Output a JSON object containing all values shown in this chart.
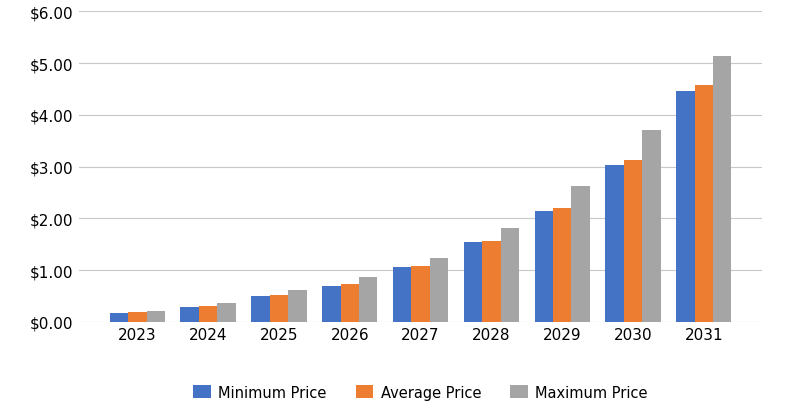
{
  "years": [
    2023,
    2024,
    2025,
    2026,
    2027,
    2028,
    2029,
    2030,
    2031
  ],
  "minimum_price": [
    0.18,
    0.28,
    0.5,
    0.7,
    1.07,
    1.55,
    2.15,
    3.03,
    4.46
  ],
  "average_price": [
    0.2,
    0.3,
    0.52,
    0.73,
    1.09,
    1.57,
    2.2,
    3.12,
    4.58
  ],
  "maximum_price": [
    0.22,
    0.37,
    0.62,
    0.87,
    1.23,
    1.82,
    2.63,
    3.7,
    5.13
  ],
  "bar_colors": {
    "minimum": "#4472C4",
    "average": "#ED7D31",
    "maximum": "#A5A5A5"
  },
  "legend_labels": [
    "Minimum Price",
    "Average Price",
    "Maximum Price"
  ],
  "ylim": [
    0,
    6.0
  ],
  "yticks": [
    0.0,
    1.0,
    2.0,
    3.0,
    4.0,
    5.0,
    6.0
  ],
  "background_color": "#ffffff",
  "grid_color": "#c8c8c8",
  "bar_width": 0.26,
  "figsize": [
    7.86,
    4.14
  ],
  "dpi": 100
}
